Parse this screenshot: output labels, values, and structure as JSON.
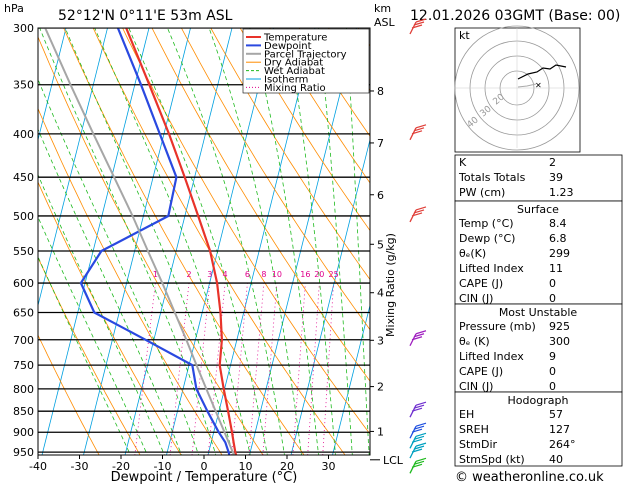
{
  "header": {
    "location": "52°12'N  0°11'E  53m  ASL",
    "datetime": "12.01.2026  03GMT  (Base: 00)",
    "left_unit": "hPa",
    "km_unit": "km",
    "asl_unit": "ASL"
  },
  "chart_data": {
    "type": "line",
    "xlabel": "Dewpoint / Temperature (°C)",
    "ylabel_right": "Mixing Ratio (g/kg)",
    "x_ticks": [
      -40,
      -30,
      -20,
      -10,
      0,
      10,
      20,
      30
    ],
    "xlim": [
      -40,
      40
    ],
    "pressure_levels": [
      300,
      350,
      400,
      450,
      500,
      550,
      600,
      650,
      700,
      750,
      800,
      850,
      900,
      950
    ],
    "ylim_hpa": [
      1000,
      300
    ],
    "km_ticks": [
      {
        "label": "1",
        "p": 898
      },
      {
        "label": "2",
        "p": 795
      },
      {
        "label": "3",
        "p": 701
      },
      {
        "label": "4",
        "p": 616
      },
      {
        "label": "5",
        "p": 540
      },
      {
        "label": "6",
        "p": 472
      },
      {
        "label": "7",
        "p": 410
      },
      {
        "label": "8",
        "p": 356
      }
    ],
    "lcl": {
      "label": "LCL",
      "p": 970
    },
    "mixing_ratio_labels": [
      "1",
      "2",
      "3",
      "4",
      "6",
      "8",
      "10",
      "16",
      "20",
      "25"
    ],
    "mixing_ratio_values": [
      1,
      2,
      3,
      4,
      6,
      8,
      10,
      16,
      20,
      25
    ],
    "legend": [
      {
        "name": "Temperature",
        "color": "#e8332a"
      },
      {
        "name": "Dewpoint",
        "color": "#2a49e0"
      },
      {
        "name": "Parcel Trajectory",
        "color": "#a6a6a6"
      },
      {
        "name": "Dry Adiabat",
        "color": "#ff8c00"
      },
      {
        "name": "Wet Adiabat",
        "color": "#1fba1f"
      },
      {
        "name": "Isotherm",
        "color": "#00a0e0"
      },
      {
        "name": "Mixing Ratio",
        "color": "#e0008c"
      }
    ],
    "series": [
      {
        "name": "Temperature",
        "color": "#e8332a",
        "points": [
          [
            992,
            8.4
          ],
          [
            950,
            6.4
          ],
          [
            925,
            5.4
          ],
          [
            900,
            4.4
          ],
          [
            850,
            2.2
          ],
          [
            800,
            -0.2
          ],
          [
            750,
            -2.6
          ],
          [
            700,
            -3.6
          ],
          [
            650,
            -5.6
          ],
          [
            600,
            -8.2
          ],
          [
            550,
            -11.8
          ],
          [
            500,
            -16.8
          ],
          [
            450,
            -22.4
          ],
          [
            400,
            -28.8
          ],
          [
            350,
            -36.5
          ],
          [
            300,
            -45.5
          ]
        ]
      },
      {
        "name": "Dewpoint",
        "color": "#2a49e0",
        "points": [
          [
            992,
            6.8
          ],
          [
            950,
            4.8
          ],
          [
            925,
            3.4
          ],
          [
            900,
            1.2
          ],
          [
            850,
            -2.8
          ],
          [
            800,
            -6.8
          ],
          [
            750,
            -9.2
          ],
          [
            700,
            -22
          ],
          [
            650,
            -36
          ],
          [
            600,
            -41
          ],
          [
            550,
            -38
          ],
          [
            500,
            -24
          ],
          [
            450,
            -24.4
          ],
          [
            400,
            -31
          ],
          [
            350,
            -38.5
          ],
          [
            300,
            -47.5
          ]
        ]
      },
      {
        "name": "Parcel Trajectory",
        "color": "#a6a6a6",
        "points": [
          [
            992,
            8.4
          ],
          [
            970,
            7.2
          ],
          [
            950,
            5.8
          ],
          [
            900,
            2.6
          ],
          [
            850,
            -0.8
          ],
          [
            800,
            -4.4
          ],
          [
            750,
            -8.2
          ],
          [
            700,
            -12.2
          ],
          [
            650,
            -16.6
          ],
          [
            600,
            -21.4
          ],
          [
            550,
            -26.8
          ],
          [
            500,
            -32.6
          ],
          [
            450,
            -39.4
          ],
          [
            400,
            -47
          ],
          [
            350,
            -55.5
          ],
          [
            300,
            -65
          ]
        ]
      }
    ]
  },
  "hodograph": {
    "label": "kt",
    "ring_labels": [
      "40",
      "30",
      "20"
    ]
  },
  "indices": {
    "k": {
      "label": "K",
      "value": "2"
    },
    "tt": {
      "label": "Totals Totals",
      "value": "39"
    },
    "pw": {
      "label": "PW (cm)",
      "value": "1.23"
    }
  },
  "surface": {
    "title": "Surface",
    "rows": [
      {
        "label": "Temp (°C)",
        "value": "8.4"
      },
      {
        "label": "Dewp (°C)",
        "value": "6.8"
      },
      {
        "label": "θₑ(K)",
        "value": "299"
      },
      {
        "label": "Lifted Index",
        "value": "11"
      },
      {
        "label": "CAPE (J)",
        "value": "0"
      },
      {
        "label": "CIN (J)",
        "value": "0"
      }
    ]
  },
  "most_unstable": {
    "title": "Most Unstable",
    "rows": [
      {
        "label": "Pressure (mb)",
        "value": "925"
      },
      {
        "label": "θₑ (K)",
        "value": "300"
      },
      {
        "label": "Lifted Index",
        "value": "9"
      },
      {
        "label": "CAPE (J)",
        "value": "0"
      },
      {
        "label": "CIN (J)",
        "value": "0"
      }
    ]
  },
  "hodograph_table": {
    "title": "Hodograph",
    "rows": [
      {
        "label": "EH",
        "value": "57"
      },
      {
        "label": "SREH",
        "value": "127"
      },
      {
        "label": "StmDir",
        "value": "264°"
      },
      {
        "label": "StmSpd (kt)",
        "value": "40"
      }
    ]
  },
  "footer": {
    "copyright": "© weatheronline.co.uk"
  }
}
